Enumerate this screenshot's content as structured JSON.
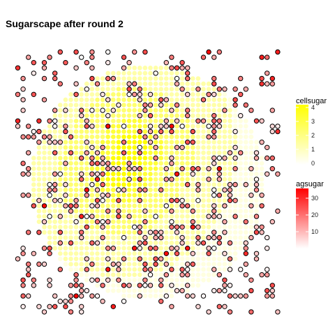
{
  "chart_data": {
    "type": "scatter",
    "title": "Sugarscape after round 2",
    "xlabel": "",
    "ylabel": "",
    "grid": false,
    "axes_visible": false,
    "grid_size": [
      50,
      50
    ],
    "layers": [
      {
        "name": "cellsugar",
        "role": "background cells",
        "description": "every grid cell drawn as a yellow disc, intensity = cell sugar; higher values in two concentric peaks near centre",
        "color_scale": {
          "low": "#ffffff",
          "high": "#ffff00",
          "range": [
            0,
            4
          ]
        }
      },
      {
        "name": "agsugar",
        "role": "agents",
        "description": "agents drawn as black-outlined discs, fill = agent sugar",
        "color_scale": {
          "low": "#ffffff",
          "high": "#ff0000",
          "range": [
            0,
            35
          ]
        }
      }
    ],
    "sugar_landscape": {
      "peaks": [
        {
          "x": 19.5,
          "y": 22.5,
          "max": 4
        },
        {
          "x": 21.5,
          "y": 18.5,
          "max": 4
        }
      ],
      "radius_levels": [
        3,
        6,
        12,
        20
      ],
      "outer_radius": 22
    },
    "agents": {
      "count": 560,
      "sugar_range": [
        0,
        35
      ],
      "typical_sugar": [
        5,
        25
      ]
    },
    "legends": [
      {
        "title": "cellsugar",
        "ticks": [
          0,
          1,
          2,
          3,
          4
        ],
        "colors": [
          "#ffffff",
          "#ffff00"
        ],
        "placement": "right-top"
      },
      {
        "title": "agsugar",
        "ticks": [
          10,
          20,
          30
        ],
        "colors": [
          "#ffffff",
          "#ff0000"
        ],
        "placement": "right-bottom"
      }
    ],
    "colors": {
      "cell_low": "#ffffff",
      "cell_high": "#ffff00",
      "agent_low": "#ffffff",
      "agent_high": "#ff0000",
      "agent_outline": "#000000"
    }
  }
}
